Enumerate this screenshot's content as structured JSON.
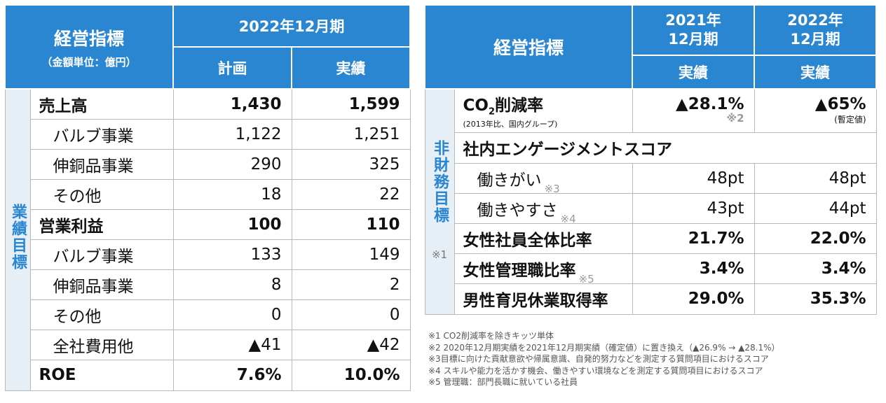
{
  "left": {
    "header": {
      "title": "経営指標",
      "subtitle": "（金額単位：億円）",
      "period": "2022年12月期",
      "col_plan": "計画",
      "col_actual": "実績"
    },
    "section_label": "業績目標",
    "rows": [
      {
        "label": "売上高",
        "plan": "1,430",
        "actual": "1,599"
      },
      {
        "label": "バルブ事業",
        "plan": "1,122",
        "actual": "1,251"
      },
      {
        "label": "伸銅品事業",
        "plan": "290",
        "actual": "325"
      },
      {
        "label": "その他",
        "plan": "18",
        "actual": "22"
      },
      {
        "label": "営業利益",
        "plan": "100",
        "actual": "110"
      },
      {
        "label": "バルブ事業",
        "plan": "133",
        "actual": "149"
      },
      {
        "label": "伸銅品事業",
        "plan": "8",
        "actual": "2"
      },
      {
        "label": "その他",
        "plan": "0",
        "actual": "0"
      },
      {
        "label": "全社費用他",
        "plan": "▲41",
        "actual": "▲42"
      },
      {
        "label": "ROE",
        "plan": "7.6%",
        "actual": "10.0%"
      }
    ]
  },
  "right": {
    "header": {
      "title": "経営指標",
      "col_2021": "2021年 12月期",
      "col_2022": "2022年 12月期",
      "actual_2021": "実績",
      "actual_2022": "実績"
    },
    "section_label": "非財務目標",
    "section_note": "※1",
    "co2": {
      "label_pre": "CO",
      "label_sub": "2",
      "label_post": "削減率",
      "label_note": "(2013年比、国内グループ)",
      "v2021": "▲28.1%",
      "v2021_note": "※2",
      "v2022": "▲65%",
      "v2022_note": "(暫定値)"
    },
    "engagement_title": "社内エンゲージメントスコア",
    "rows": [
      {
        "label": "働きがい",
        "mark": "※3",
        "v2021": "48pt",
        "v2022": "48pt"
      },
      {
        "label": "働きやすさ",
        "mark": "※4",
        "v2021": "43pt",
        "v2022": "44pt"
      },
      {
        "label": "女性社員全体比率",
        "mark": "",
        "v2021": "21.7%",
        "v2022": "22.0%"
      },
      {
        "label": "女性管理職比率",
        "mark": "※5",
        "v2021": "3.4%",
        "v2022": "3.4%"
      },
      {
        "label": "男性育児休業取得率",
        "mark": "",
        "v2021": "29.0%",
        "v2022": "35.3%"
      }
    ]
  },
  "notes": [
    "※1 CO2削減率を除きキッツ単体",
    "※2 2020年12月期実績を2021年12月期実績（確定値）に置き換え（▲26.9% → ▲28.1%）",
    "※3目標に向けた貢献意欲や帰属意識、自発的努力などを測定する質問項目におけるスコア",
    "※4 スキルや能力を活かす機会、働きやすい環境などを測定する質問項目におけるスコア",
    "※5 管理職：部門長職に就いている社員"
  ]
}
